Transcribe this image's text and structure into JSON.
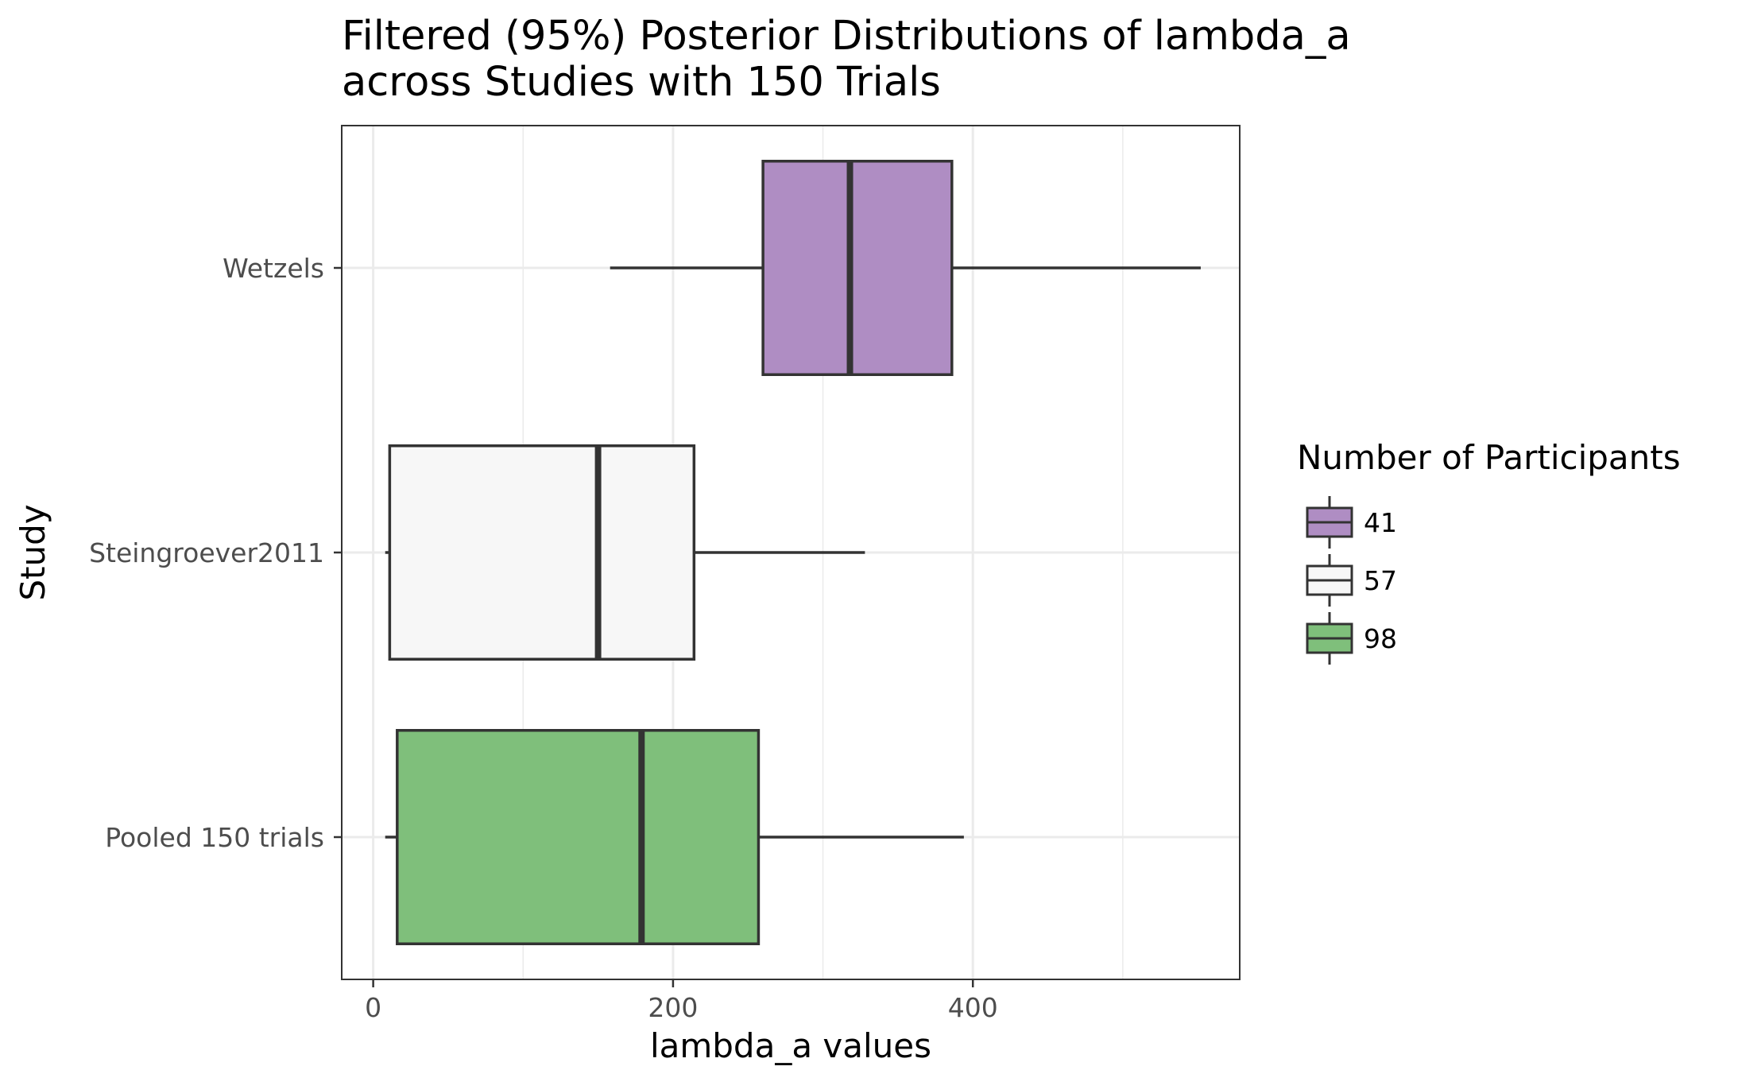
{
  "chart_data": {
    "type": "boxplot",
    "title_line1": "Filtered (95%) Posterior Distributions of lambda_a",
    "title_line2": "across Studies with 150 Trials",
    "xlabel": "lambda_a values",
    "ylabel": "Study",
    "xlim": [
      -21,
      578
    ],
    "x_ticks": [
      0,
      200,
      400
    ],
    "x_minor_ticks": [
      100,
      300,
      500
    ],
    "grid": true,
    "legend_position": "right",
    "legend_title": "Number of Participants",
    "categories": [
      "Wetzels",
      "Steingroever2011",
      "Pooled 150 trials"
    ],
    "boxes": [
      {
        "study": "Wetzels",
        "group": "41",
        "whisker_low": 158,
        "q1": 260,
        "median": 318,
        "q3": 386,
        "whisker_high": 552,
        "color": "#af8dc3"
      },
      {
        "study": "Steingroever2011",
        "group": "57",
        "whisker_low": 8,
        "q1": 11,
        "median": 150,
        "q3": 214,
        "whisker_high": 328,
        "color": "#f7f7f7"
      },
      {
        "study": "Pooled 150 trials",
        "group": "98",
        "whisker_low": 8,
        "q1": 16,
        "median": 179,
        "q3": 257,
        "whisker_high": 394,
        "color": "#7fbf7b"
      }
    ],
    "legend": [
      {
        "label": "41",
        "color": "#af8dc3"
      },
      {
        "label": "57",
        "color": "#f7f7f7"
      },
      {
        "label": "98",
        "color": "#7fbf7b"
      }
    ]
  }
}
